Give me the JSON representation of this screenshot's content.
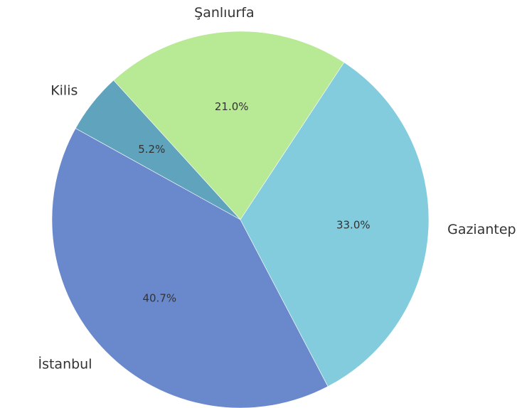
{
  "chart_data": {
    "type": "pie",
    "title": "",
    "categories": [
      "Şanlıurfa",
      "Kilis",
      "İstanbul",
      "Gaziantep"
    ],
    "values": [
      21.0,
      5.2,
      40.7,
      33.0
    ],
    "value_labels": [
      "21.0%",
      "5.2%",
      "40.7%",
      "33.0%"
    ],
    "colors": [
      "#b8e994",
      "#60a3bc",
      "#6a89cc",
      "#82ccdd"
    ],
    "start_angle_deg": 56.6,
    "direction": "counterclockwise",
    "legend": "none"
  }
}
